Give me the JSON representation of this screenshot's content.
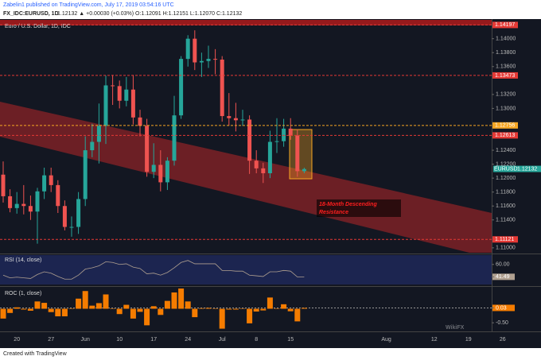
{
  "header": {
    "publisher": "Zabelin1 published on TradingView.com, July 17, 2019 03:54:16 UTC",
    "symbol": "FX_IDC:EURUSD, 1D",
    "quote": "1.12132 ▲ +0.00030 (+0.03%) O:1.12091 H:1.12151 L:1.12070 C:1.12132"
  },
  "footer": "Created with TradingView",
  "watermark": "WikiFX",
  "chart_data": [
    {
      "type": "candlestick",
      "title": "Euro / U.S. Dollar, 1D, IDC",
      "categories": [
        null,
        null,
        "20",
        null,
        null,
        null,
        null,
        "27",
        null,
        null,
        null,
        null,
        "Jun",
        null,
        null,
        null,
        null,
        "10",
        null,
        null,
        null,
        null,
        "17",
        null,
        null,
        null,
        null,
        "24",
        null,
        null,
        null,
        null,
        "Jul",
        null,
        null,
        null,
        null,
        "8",
        null,
        null,
        null,
        null,
        "15",
        null,
        null
      ],
      "future_categories": [
        "Aug",
        "12",
        "19",
        "26"
      ],
      "open": [
        1.1205,
        1.1174,
        1.1157,
        1.1163,
        1.116,
        1.1152,
        1.1181,
        1.1204,
        1.119,
        1.116,
        1.113,
        1.113,
        1.117,
        1.124,
        1.1252,
        1.1275,
        1.1333,
        1.1332,
        1.1311,
        1.1327,
        1.1287,
        1.1275,
        1.1209,
        1.1219,
        1.1194,
        1.1225,
        1.129,
        1.1371,
        1.14,
        1.1366,
        1.1368,
        1.1371,
        1.137,
        1.1289,
        1.1286,
        1.1283,
        1.1284,
        1.1225,
        1.1214,
        1.1207,
        1.1252,
        1.1253,
        1.1271,
        1.1261,
        1.121
      ],
      "high": [
        1.1224,
        1.1184,
        1.118,
        1.119,
        1.1175,
        1.1186,
        1.1215,
        1.1215,
        1.1197,
        1.1168,
        1.1145,
        1.118,
        1.126,
        1.1278,
        1.1307,
        1.1347,
        1.1348,
        1.134,
        1.1345,
        1.1348,
        1.1298,
        1.1285,
        1.125,
        1.124,
        1.123,
        1.1318,
        1.1375,
        1.1405,
        1.1412,
        1.138,
        1.139,
        1.1385,
        1.1375,
        1.1322,
        1.1308,
        1.1298,
        1.129,
        1.124,
        1.1222,
        1.1268,
        1.1286,
        1.1285,
        1.1286,
        1.127,
        1.1215
      ],
      "low": [
        1.1165,
        1.1151,
        1.1149,
        1.1148,
        1.114,
        1.1106,
        1.117,
        1.118,
        1.115,
        1.1125,
        1.1116,
        1.112,
        1.116,
        1.123,
        1.1221,
        1.1249,
        1.1305,
        1.13,
        1.1303,
        1.1277,
        1.126,
        1.1202,
        1.12,
        1.1181,
        1.1183,
        1.1218,
        1.1285,
        1.136,
        1.1355,
        1.1345,
        1.1358,
        1.1349,
        1.1281,
        1.1275,
        1.1267,
        1.1275,
        1.1206,
        1.1207,
        1.1193,
        1.12,
        1.1236,
        1.1245,
        1.1255,
        1.1202,
        1.1207
      ],
      "close": [
        1.1174,
        1.1157,
        1.1163,
        1.116,
        1.1152,
        1.1181,
        1.1204,
        1.119,
        1.116,
        1.113,
        1.113,
        1.117,
        1.124,
        1.1252,
        1.1275,
        1.1333,
        1.1332,
        1.1311,
        1.1327,
        1.1287,
        1.1275,
        1.1209,
        1.1219,
        1.1194,
        1.1225,
        1.129,
        1.1371,
        1.14,
        1.1366,
        1.1368,
        1.1371,
        1.137,
        1.1289,
        1.1286,
        1.1283,
        1.1284,
        1.1225,
        1.1214,
        1.1207,
        1.1252,
        1.1253,
        1.1271,
        1.1261,
        1.121,
        1.1213
      ],
      "up_color": "#26a69a",
      "down_color": "#ef5350",
      "ylim": [
        1.1093,
        1.1427
      ],
      "yticks": [
        {
          "value": 1.14,
          "label": "1.14000"
        },
        {
          "value": 1.138,
          "label": "1.13800"
        },
        {
          "value": 1.136,
          "label": "1.13600"
        },
        {
          "value": 1.132,
          "label": "1.13200"
        },
        {
          "value": 1.13,
          "label": "1.13000"
        },
        {
          "value": 1.124,
          "label": "1.12400"
        },
        {
          "value": 1.122,
          "label": "1.12200"
        },
        {
          "value": 1.12,
          "label": "1.12000"
        },
        {
          "value": 1.118,
          "label": "1.11800"
        },
        {
          "value": 1.116,
          "label": "1.11600"
        },
        {
          "value": 1.114,
          "label": "1.11400"
        },
        {
          "value": 1.11,
          "label": "1.11000"
        }
      ],
      "levels": [
        {
          "value": 1.14197,
          "color": "#e53935"
        },
        {
          "value": 1.13473,
          "color": "#e53935"
        },
        {
          "value": 1.12756,
          "color": "#f6a623"
        },
        {
          "value": 1.12613,
          "color": "#e53935"
        },
        {
          "value": 1.11121,
          "color": "#e53935"
        }
      ],
      "price_label": {
        "name": "EURUSD",
        "value": 1.12132,
        "color": "#26a69a"
      },
      "annotation": [
        "18-Month Descending",
        "Resistance"
      ]
    },
    {
      "type": "line",
      "title": "RSI (14, close)",
      "color": "#b0a090",
      "values": [
        44,
        40,
        41,
        40,
        39,
        45,
        49,
        47,
        42,
        38,
        38,
        44,
        53,
        55,
        58,
        64,
        63,
        60,
        61,
        56,
        54,
        46,
        47,
        44,
        48,
        55,
        63,
        66,
        61,
        61,
        61,
        61,
        51,
        51,
        50,
        50,
        44,
        43,
        42,
        49,
        49,
        51,
        50,
        41.3,
        41.49
      ],
      "ylim": [
        30,
        74
      ],
      "yticks": [
        {
          "value": 60,
          "label": "60.00"
        },
        41.49
      ]
    },
    {
      "type": "bar",
      "title": "ROC (1, close)",
      "color": "#f57c00",
      "values": [
        -0.35,
        -0.15,
        0.05,
        -0.03,
        -0.07,
        0.26,
        0.21,
        -0.12,
        -0.27,
        -0.27,
        0.0,
        0.36,
        0.63,
        0.11,
        0.2,
        0.51,
        -0.01,
        -0.19,
        0.14,
        -0.35,
        -0.11,
        -0.59,
        0.09,
        -0.22,
        0.28,
        0.58,
        0.72,
        0.26,
        -0.3,
        0.02,
        0.03,
        -0.01,
        -0.71,
        -0.03,
        -0.03,
        0.01,
        -0.52,
        -0.1,
        -0.06,
        0.4,
        0.01,
        0.16,
        -0.09,
        -0.45,
        0.03
      ],
      "ylim": [
        -0.75,
        0.75
      ],
      "yticks": [
        0.03,
        {
          "value": -0.5,
          "label": "-0.50"
        }
      ]
    }
  ]
}
